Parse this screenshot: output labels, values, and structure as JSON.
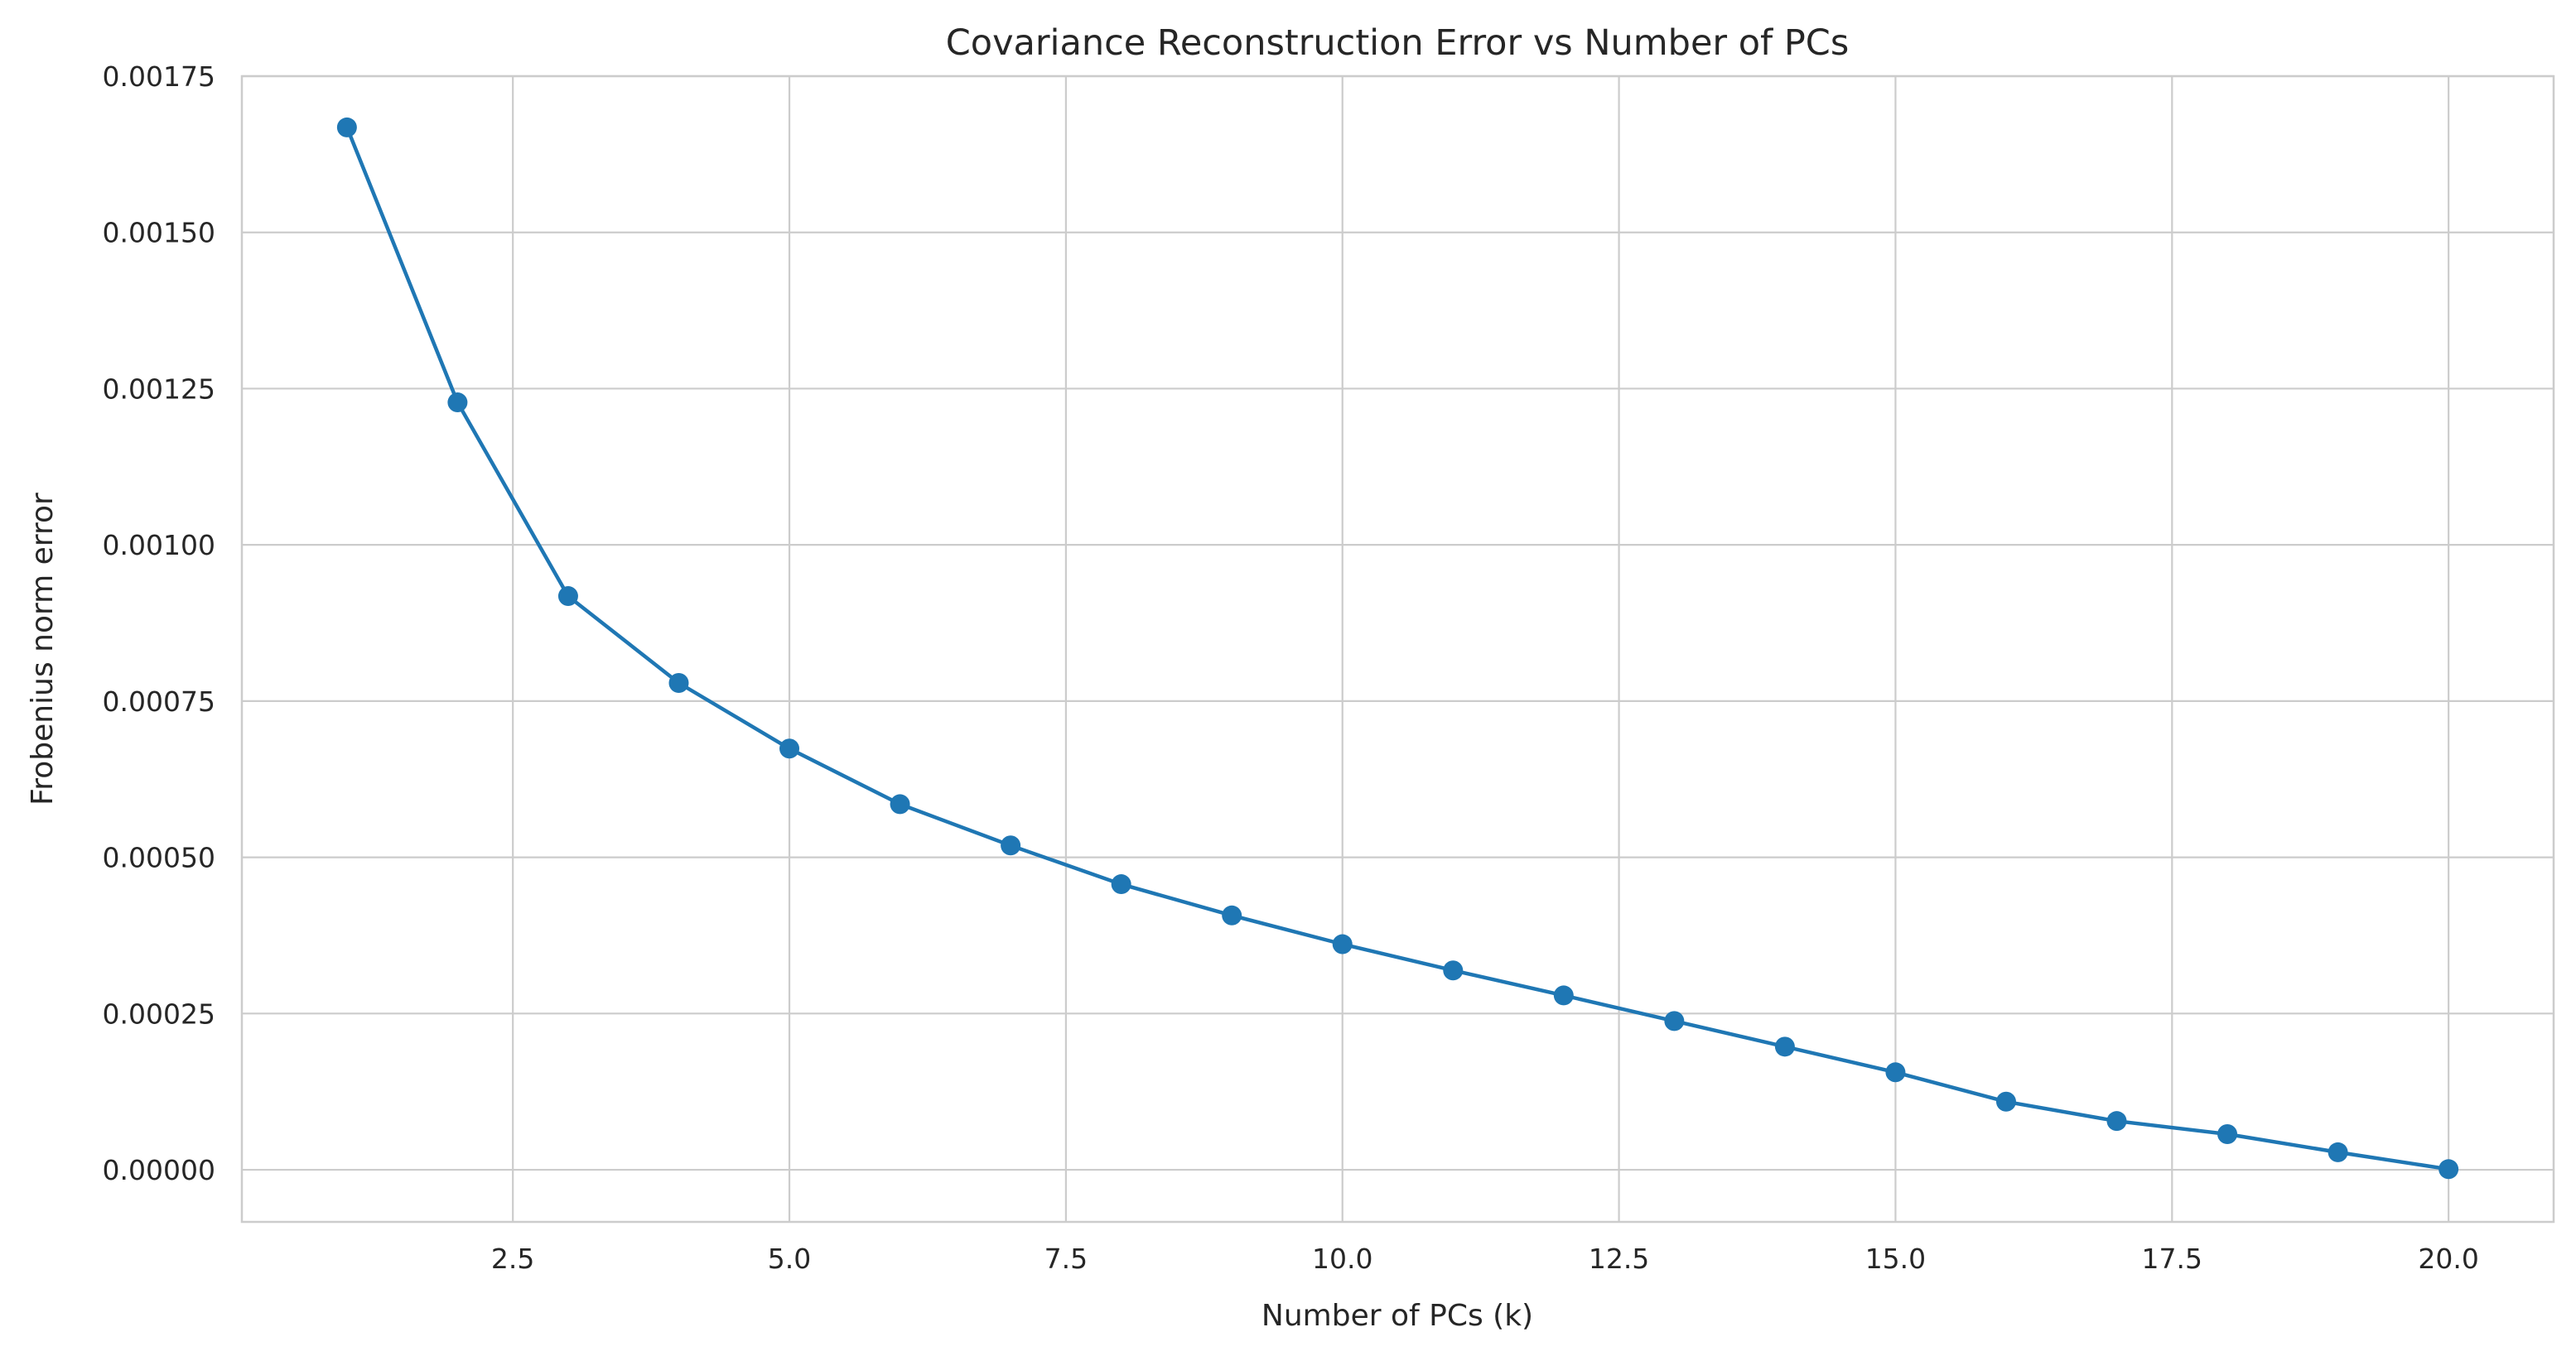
{
  "chart_data": {
    "type": "line",
    "title": "Covariance Reconstruction Error vs Number of PCs",
    "xlabel": "Number of PCs (k)",
    "ylabel": "Frobenius norm error",
    "xlim": [
      0.05,
      20.95
    ],
    "ylim": [
      -8.34e-05,
      0.00175
    ],
    "x_ticks": [
      2.5,
      5.0,
      7.5,
      10.0,
      12.5,
      15.0,
      17.5,
      20.0
    ],
    "x_tick_labels": [
      "2.5",
      "5.0",
      "7.5",
      "10.0",
      "12.5",
      "15.0",
      "17.5",
      "20.0"
    ],
    "y_ticks": [
      0,
      0.00025,
      0.0005,
      0.00075,
      0.001,
      0.00125,
      0.0015,
      0.00175
    ],
    "y_tick_labels": [
      "0.00000",
      "0.00025",
      "0.00050",
      "0.00075",
      "0.00100",
      "0.00125",
      "0.00150",
      "0.00175"
    ],
    "grid": true,
    "series": [
      {
        "color": "#1f77b4",
        "marker": "circle",
        "x": [
          1,
          2,
          3,
          4,
          5,
          6,
          7,
          8,
          9,
          10,
          11,
          12,
          13,
          14,
          15,
          16,
          17,
          18,
          19,
          20
        ],
        "y": [
          0.001668,
          0.001228,
          0.000918,
          0.000779,
          0.000674,
          0.000585,
          0.000519,
          0.000457,
          0.000407,
          0.000361,
          0.000319,
          0.000279,
          0.000238,
          0.000197,
          0.000156,
          0.000109,
          7.8e-05,
          5.7e-05,
          2.8e-05,
          1e-06
        ]
      }
    ]
  }
}
